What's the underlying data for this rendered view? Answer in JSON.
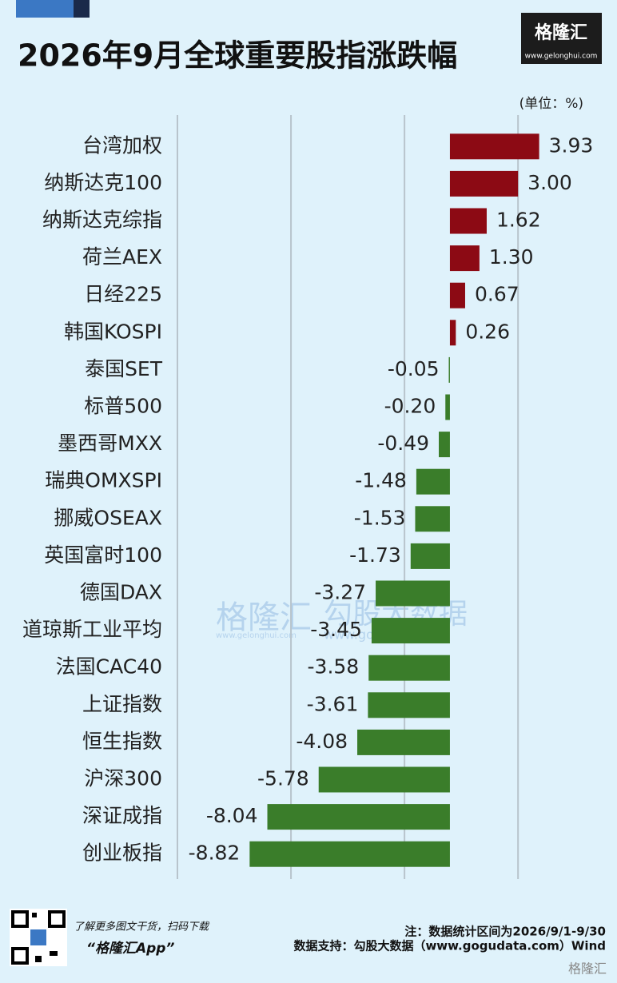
{
  "header": {
    "title": "2026年9月全球重要股指涨跌幅",
    "logo": "格隆汇",
    "logo_url": "www.gelonghui.com"
  },
  "chart_data": {
    "type": "hbar",
    "unit": "(单位：%)",
    "categories": [
      "台湾加权",
      "纳斯达克100",
      "纳斯达克综指",
      "荷兰AEX",
      "日经225",
      "韩国KOSPI",
      "泰国SET",
      "标普500",
      "墨西哥MXX",
      "瑞典OMXSPI",
      "挪威OSEAX",
      "英国富时100",
      "德国DAX",
      "道琼斯工业平均",
      "法国CAC40",
      "上证指数",
      "恒生指数",
      "沪深300",
      "深证成指",
      "创业板指"
    ],
    "values": [
      3.93,
      3.0,
      1.62,
      1.3,
      0.67,
      0.26,
      -0.05,
      -0.2,
      -0.49,
      -1.48,
      -1.53,
      -1.73,
      -3.27,
      -3.45,
      -3.58,
      -3.61,
      -4.08,
      -5.78,
      -8.04,
      -8.82
    ],
    "value_labels": [
      "3.93",
      "3.00",
      "1.62",
      "1.30",
      "0.67",
      "0.26",
      "-0.05",
      "-0.20",
      "-0.49",
      "-1.48",
      "-1.53",
      "-1.73",
      "-3.27",
      "-3.45",
      "-3.58",
      "-3.61",
      "-4.08",
      "-5.78",
      "-8.04",
      "-8.82"
    ],
    "positive_color": "#8c0a14",
    "negative_color": "#3a7d2a",
    "xlim": [
      -12,
      5
    ],
    "xticks": [
      -12,
      -7,
      -2,
      3
    ],
    "grid": true
  },
  "watermark": {
    "brand": "格隆汇",
    "brand_url": "www.gelonghui.com",
    "data": "勾股大数据",
    "data_url": "www.gogudata.com"
  },
  "footer": {
    "promo": "了解更多图文干货，扫码下载",
    "app": "“格隆汇App”",
    "note": "注：数据统计区间为2026/9/1-9/30",
    "source": "数据支持：勾股大数据（www.gogudata.com）Wind",
    "corner_logo": "格隆汇"
  }
}
